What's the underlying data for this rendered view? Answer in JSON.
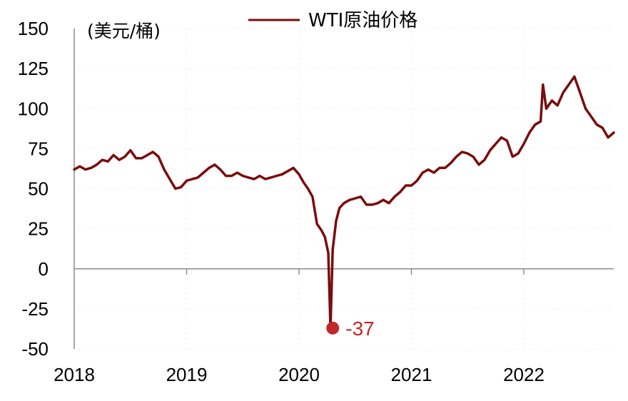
{
  "chart_data": {
    "type": "line",
    "unit_label": "(美元/桶)",
    "legend": "WTI原油价格",
    "ylim": [
      -50,
      150
    ],
    "yticks": [
      150,
      125,
      100,
      75,
      50,
      25,
      0,
      -25,
      -50
    ],
    "ytick_labels": [
      "150",
      "125",
      "100",
      "75",
      "50",
      "25",
      "0",
      "-25",
      "-50"
    ],
    "xlim": [
      2018,
      2022.8
    ],
    "xticks": [
      2018,
      2019,
      2020,
      2021,
      2022
    ],
    "xtick_labels": [
      "2018",
      "2019",
      "2020",
      "2021",
      "2022"
    ],
    "grid": true,
    "legend_position": "top-center",
    "colors": {
      "series": "#7a0c0c",
      "annotation": "#c0282a",
      "axis": "#8c8c8c",
      "grid": "#d9d9d9"
    },
    "annotation": {
      "x": 2020.3,
      "y": -37,
      "text": "-37"
    },
    "series": [
      {
        "name": "WTI原油价格",
        "x": [
          2018.0,
          2018.05,
          2018.1,
          2018.15,
          2018.2,
          2018.25,
          2018.3,
          2018.35,
          2018.4,
          2018.45,
          2018.5,
          2018.55,
          2018.6,
          2018.65,
          2018.7,
          2018.75,
          2018.8,
          2018.85,
          2018.9,
          2018.95,
          2019.0,
          2019.05,
          2019.1,
          2019.15,
          2019.2,
          2019.25,
          2019.3,
          2019.35,
          2019.4,
          2019.45,
          2019.5,
          2019.55,
          2019.6,
          2019.65,
          2019.7,
          2019.75,
          2019.8,
          2019.85,
          2019.9,
          2019.95,
          2020.0,
          2020.04,
          2020.08,
          2020.12,
          2020.16,
          2020.2,
          2020.23,
          2020.26,
          2020.28,
          2020.3,
          2020.31,
          2020.33,
          2020.36,
          2020.4,
          2020.45,
          2020.5,
          2020.55,
          2020.6,
          2020.65,
          2020.7,
          2020.75,
          2020.8,
          2020.85,
          2020.9,
          2020.95,
          2021.0,
          2021.05,
          2021.1,
          2021.15,
          2021.2,
          2021.25,
          2021.3,
          2021.35,
          2021.4,
          2021.45,
          2021.5,
          2021.55,
          2021.6,
          2021.65,
          2021.7,
          2021.75,
          2021.8,
          2021.85,
          2021.9,
          2021.95,
          2022.0,
          2022.05,
          2022.1,
          2022.15,
          2022.17,
          2022.2,
          2022.25,
          2022.3,
          2022.35,
          2022.4,
          2022.45,
          2022.5,
          2022.55,
          2022.6,
          2022.65,
          2022.7,
          2022.75,
          2022.8
        ],
        "values": [
          62,
          64,
          62,
          63,
          65,
          68,
          67,
          71,
          68,
          70,
          74,
          69,
          69,
          71,
          73,
          70,
          62,
          56,
          50,
          51,
          55,
          56,
          57,
          60,
          63,
          65,
          62,
          58,
          58,
          60,
          58,
          57,
          56,
          58,
          56,
          57,
          58,
          59,
          61,
          63,
          59,
          54,
          50,
          45,
          28,
          24,
          20,
          10,
          -37,
          12,
          18,
          30,
          38,
          41,
          43,
          44,
          45,
          40,
          40,
          41,
          43,
          41,
          45,
          48,
          52,
          52,
          55,
          60,
          62,
          60,
          63,
          63,
          66,
          70,
          73,
          72,
          70,
          65,
          68,
          74,
          78,
          82,
          80,
          70,
          72,
          78,
          85,
          90,
          92,
          115,
          100,
          105,
          102,
          110,
          115,
          120,
          110,
          100,
          95,
          90,
          88,
          82,
          85
        ]
      }
    ]
  }
}
